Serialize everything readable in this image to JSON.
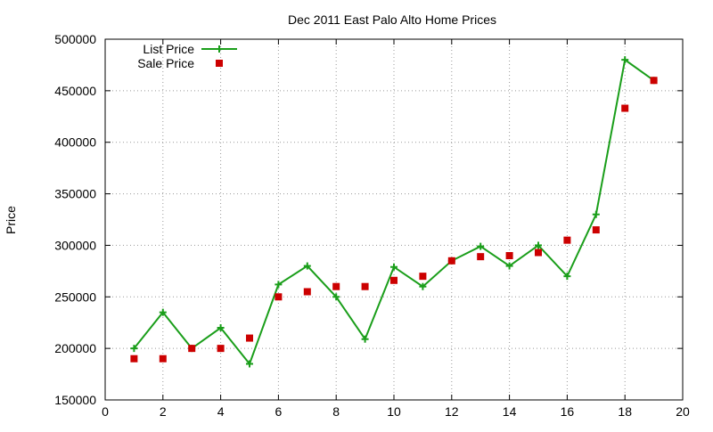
{
  "chart_data": {
    "type": "line",
    "title": "Dec 2011 East Palo Alto Home Prices",
    "xlabel": "",
    "ylabel": "Price",
    "xlim": [
      0,
      20
    ],
    "ylim": [
      150000,
      500000
    ],
    "x_ticks": [
      0,
      2,
      4,
      6,
      8,
      10,
      12,
      14,
      16,
      18,
      20
    ],
    "y_ticks": [
      150000,
      200000,
      250000,
      300000,
      350000,
      400000,
      450000,
      500000
    ],
    "grid": true,
    "legend_position": "top-left",
    "series": [
      {
        "name": "List Price",
        "style": "line+cross",
        "color": "#1a9e1a",
        "x": [
          1,
          2,
          3,
          4,
          5,
          6,
          7,
          8,
          9,
          10,
          11,
          12,
          13,
          14,
          15,
          16,
          17,
          18,
          19
        ],
        "y": [
          200000,
          235000,
          200000,
          220000,
          185000,
          262000,
          280000,
          250000,
          209000,
          279000,
          260000,
          285000,
          299000,
          280000,
          300000,
          270000,
          330000,
          480000,
          460000
        ]
      },
      {
        "name": "Sale Price",
        "style": "square",
        "color": "#cc0000",
        "x": [
          1,
          2,
          3,
          4,
          5,
          6,
          7,
          8,
          9,
          10,
          11,
          12,
          13,
          14,
          15,
          16,
          17,
          18,
          19
        ],
        "y": [
          190000,
          190000,
          200000,
          200000,
          210000,
          250000,
          255000,
          260000,
          260000,
          266000,
          270000,
          285000,
          289000,
          290000,
          293000,
          305000,
          315000,
          433000,
          460000
        ]
      }
    ]
  }
}
